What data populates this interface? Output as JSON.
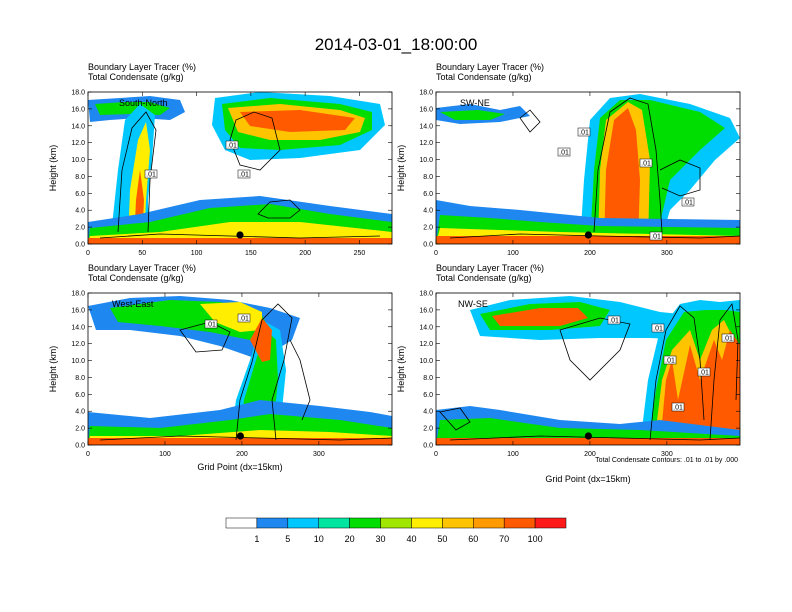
{
  "title": "2014-03-01_18:00:00",
  "colors": {
    "levels": [
      "#ffffff",
      "#1e88f0",
      "#00c8ff",
      "#00e6a0",
      "#00dd00",
      "#a0e600",
      "#ffee00",
      "#ffc400",
      "#ff9b00",
      "#ff5a00",
      "#ff1a1a"
    ],
    "contour": "#000000",
    "marker": "#000000"
  },
  "colorbar": {
    "labels": [
      "1",
      "5",
      "10",
      "20",
      "30",
      "40",
      "50",
      "60",
      "70",
      "100"
    ]
  },
  "footnote": "Total Condensate Contours: .01 to .01 by .000",
  "chart_data": [
    {
      "type": "heatmap",
      "header_line1": "Boundary Layer Tracer    (%)",
      "header_line2": "Total Condensate    (g/kg)",
      "section_label": "South-North",
      "ylabel": "Height (km)",
      "xlabel": "",
      "xlim": [
        0,
        280
      ],
      "ylim": [
        0,
        18
      ],
      "xticks": [
        "0",
        "50",
        "100",
        "150",
        "200",
        "250"
      ],
      "yticks": [
        "0.0",
        "2.0",
        "4.0",
        "6.0",
        "8.0",
        "10.0",
        "12.0",
        "14.0",
        "16.0",
        "18.0"
      ],
      "contour_labels": [
        ".01",
        ".01",
        ".01"
      ],
      "marker_x": 140
    },
    {
      "type": "heatmap",
      "header_line1": "Boundary Layer Tracer    (%)",
      "header_line2": "Total Condensate    (g/kg)",
      "section_label": "SW-NE",
      "ylabel": "Height (km)",
      "xlabel": "",
      "xlim": [
        0,
        395
      ],
      "ylim": [
        0,
        18
      ],
      "xticks": [
        "0",
        "100",
        "200",
        "300"
      ],
      "yticks": [
        "0.0",
        "2.0",
        "4.0",
        "6.0",
        "8.0",
        "10.0",
        "12.0",
        "14.0",
        "16.0",
        "18.0"
      ],
      "contour_labels": [
        ".01",
        ".01",
        ".01",
        ".01",
        ".01"
      ],
      "marker_x": 198
    },
    {
      "type": "heatmap",
      "header_line1": "Boundary Layer Tracer    (%)",
      "header_line2": "Total Condensate    (g/kg)",
      "section_label": "West-East",
      "ylabel": "Height (km)",
      "xlabel": "Grid Point (dx=15km)",
      "xlim": [
        0,
        395
      ],
      "ylim": [
        0,
        18
      ],
      "xticks": [
        "0",
        "100",
        "200",
        "300"
      ],
      "yticks": [
        "0.0",
        "2.0",
        "4.0",
        "6.0",
        "8.0",
        "10.0",
        "12.0",
        "14.0",
        "16.0",
        "18.0"
      ],
      "contour_labels": [
        ".01",
        ".01"
      ],
      "marker_x": 198
    },
    {
      "type": "heatmap",
      "header_line1": "Boundary Layer Tracer    (%)",
      "header_line2": "Total Condensate    (g/kg)",
      "section_label": "NW-SE",
      "ylabel": "Height (km)",
      "xlabel": "Grid Point (dx=15km)",
      "xlim": [
        0,
        395
      ],
      "ylim": [
        0,
        18
      ],
      "xticks": [
        "0",
        "100",
        "200",
        "300"
      ],
      "yticks": [
        "0.0",
        "2.0",
        "4.0",
        "6.0",
        "8.0",
        "10.0",
        "12.0",
        "14.0",
        "16.0",
        "18.0"
      ],
      "contour_labels": [
        ".01",
        ".01",
        ".01",
        ".01",
        ".01",
        ".01"
      ],
      "marker_x": 198
    }
  ]
}
